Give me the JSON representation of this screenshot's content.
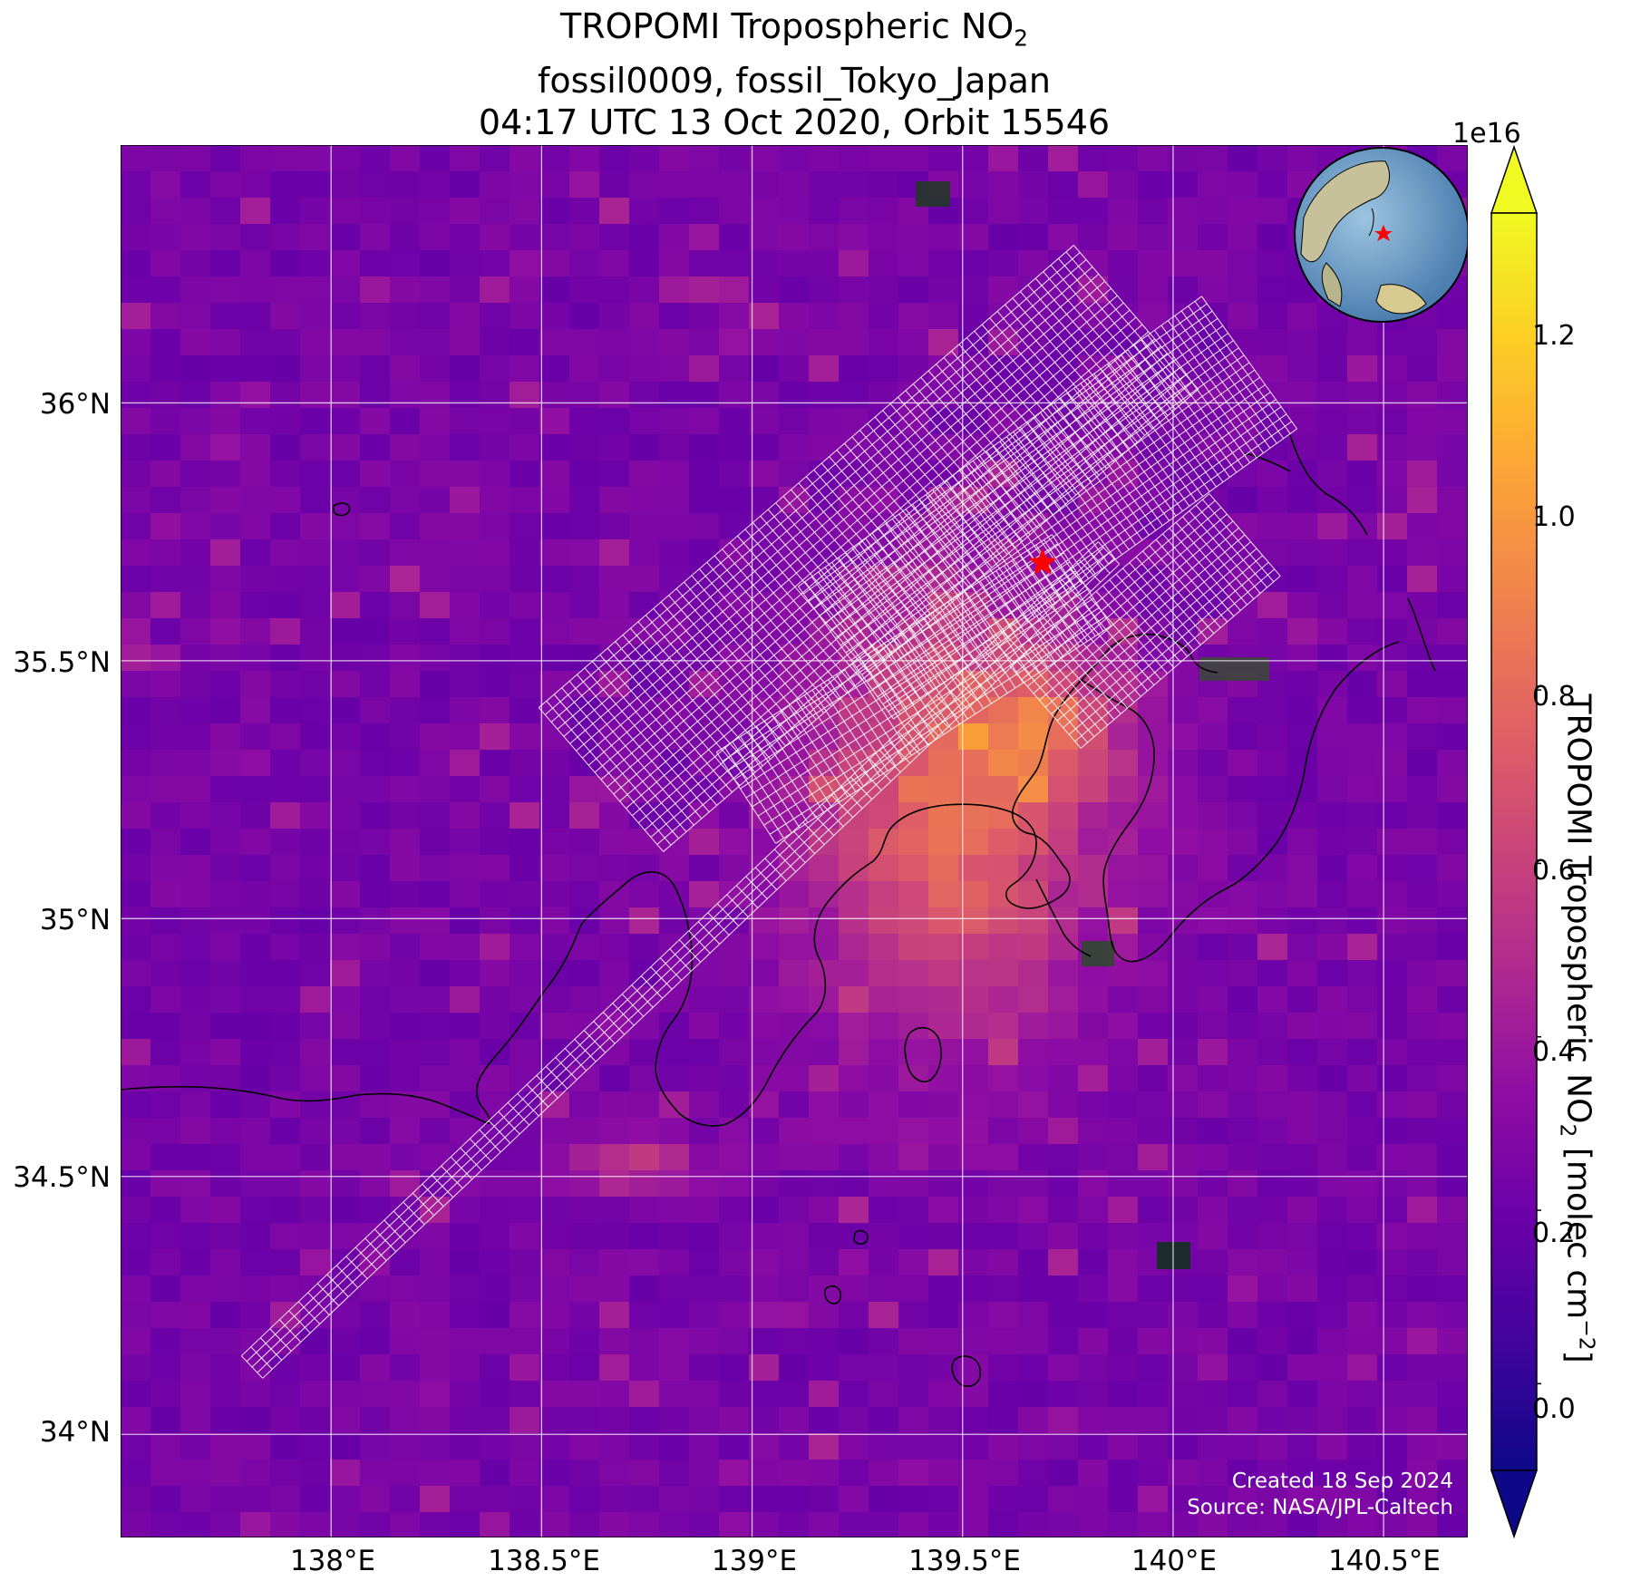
{
  "title": {
    "line1_text": "TROPOMI Tropospheric NO",
    "line1_sub": "2",
    "line2": "fossil0009, fossil_Tokyo_Japan",
    "line3": "04:17 UTC 13 Oct 2020, Orbit 15546"
  },
  "map": {
    "lon_range": [
      137.5,
      140.7
    ],
    "lat_range": [
      33.8,
      36.5
    ],
    "target_marker": {
      "lon": 139.69,
      "lat": 35.69,
      "color": "#ff0000"
    },
    "lat_ticks": [
      "36°N",
      "35.5°N",
      "35°N",
      "34.5°N",
      "34°N"
    ],
    "lon_ticks": [
      "138°E",
      "138.5°E",
      "139°E",
      "139.5°E",
      "140°E",
      "140.5°E"
    ],
    "gridlines": true,
    "inset": "globe-icon"
  },
  "colorbar": {
    "exponent": "1e16",
    "ticks": [
      "0.0",
      "0.2",
      "0.4",
      "0.6",
      "0.8",
      "1.0",
      "1.2"
    ],
    "range": [
      -0.1,
      1.35
    ],
    "colormap": "plasma",
    "label_text": "TROPOMI Tropospheric NO",
    "label_sub": "2",
    "label_unit_open": " [molec cm",
    "label_sup": "−2",
    "label_close": "]"
  },
  "credit": {
    "line1": "Created 18 Sep 2024",
    "line2": "Source: NASA/JPL-Caltech"
  }
}
